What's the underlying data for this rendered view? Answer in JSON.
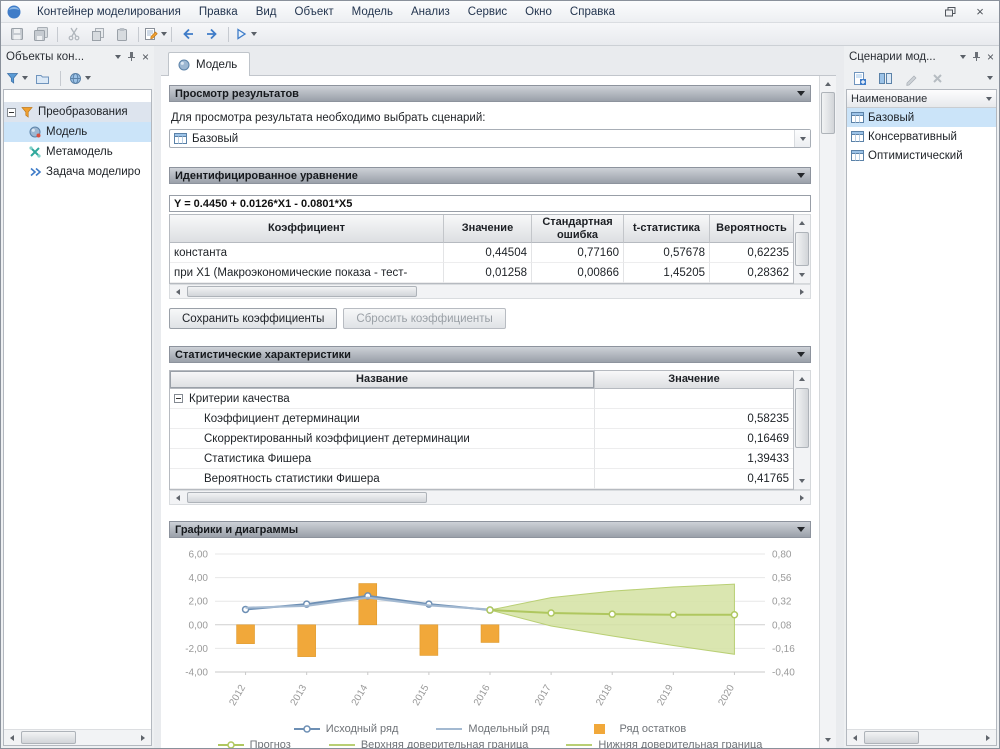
{
  "colors": {
    "accent": "#3f7cc8",
    "selection": "#cbe4f9",
    "section_bar": "#9aa0a9"
  },
  "window": {
    "app_menu": "Контейнер моделирования",
    "menus": [
      "Правка",
      "Вид",
      "Объект",
      "Модель",
      "Анализ",
      "Сервис",
      "Окно",
      "Справка"
    ]
  },
  "left_panel": {
    "title": "Объекты кон...",
    "root": "Преобразования",
    "items": [
      "Модель",
      "Метамодель",
      "Задача моделиро"
    ]
  },
  "tab": {
    "label": "Модель"
  },
  "results": {
    "title": "Просмотр результатов",
    "hint": "Для просмотра результата необходимо выбрать сценарий:",
    "scenario": "Базовый"
  },
  "equation": {
    "title": "Идентифицированное уравнение",
    "formula": "Y = 0.4450 + 0.0126*X1 - 0.0801*X5",
    "headers": [
      "Коэффициент",
      "Значение",
      "Стандартная ошибка",
      "t-статистика",
      "Вероятность"
    ],
    "rows": [
      {
        "name": "константа",
        "value": "0,44504",
        "stderr": "0,77160",
        "tstat": "0,57678",
        "prob": "0,62235"
      },
      {
        "name": "при X1 (Макроэкономические показа - тест-",
        "value": "0,01258",
        "stderr": "0,00866",
        "tstat": "1,45205",
        "prob": "0,28362"
      }
    ],
    "save_button": "Сохранить коэффициенты",
    "reset_button": "Сбросить коэффициенты"
  },
  "stats": {
    "title": "Статистические характеристики",
    "headers": [
      "Название",
      "Значение"
    ],
    "group": "Критерии качества",
    "rows": [
      {
        "name": "Коэффициент детерминации",
        "value": "0,58235"
      },
      {
        "name": "Скорректированный коэффициент детерминации",
        "value": "0,16469"
      },
      {
        "name": "Статистика Фишера",
        "value": "1,39433"
      },
      {
        "name": "Вероятность статистики Фишера",
        "value": "0,41765"
      }
    ]
  },
  "charts_section": {
    "title": "Графики и диаграммы"
  },
  "chart_data": {
    "type": "combo",
    "x": [
      2012,
      2013,
      2014,
      2015,
      2016,
      2017,
      2018,
      2019,
      2020
    ],
    "left_axis": {
      "min": -4,
      "max": 6,
      "ticks": [
        6,
        4,
        2,
        0,
        -2,
        -4
      ]
    },
    "right_axis": {
      "ticks": [
        0.8,
        0.56,
        0.32,
        0.08,
        -0.16,
        -0.4
      ]
    },
    "band_fill": "#d3e2a2",
    "series": [
      {
        "name": "Исходный ряд",
        "type": "line",
        "marker": "circle",
        "color": "#6d8fb4",
        "x": [
          2012,
          2013,
          2014,
          2015,
          2016
        ],
        "values": [
          1.3,
          1.75,
          2.45,
          1.75,
          1.25
        ]
      },
      {
        "name": "Модельный ряд",
        "type": "line",
        "marker": "none",
        "color": "#a3b9d1",
        "x": [
          2012,
          2013,
          2014,
          2015,
          2016
        ],
        "values": [
          1.45,
          1.6,
          2.3,
          1.65,
          1.3
        ]
      },
      {
        "name": "Ряд остатков",
        "type": "bar",
        "color": "#f1a83a",
        "x": [
          2012,
          2013,
          2014,
          2015,
          2016
        ],
        "values": [
          -1.6,
          -2.7,
          3.5,
          -2.6,
          -1.5
        ]
      },
      {
        "name": "Прогноз",
        "type": "line",
        "marker": "circle",
        "color": "#afc75f",
        "x": [
          2016,
          2017,
          2018,
          2019,
          2020
        ],
        "values": [
          1.25,
          1.0,
          0.9,
          0.85,
          0.85
        ]
      },
      {
        "name": "Верхняя доверительная граница",
        "type": "band-upper",
        "color": "#b9cf74",
        "x": [
          2016,
          2017,
          2018,
          2019,
          2020
        ],
        "values": [
          1.25,
          2.3,
          2.85,
          3.2,
          3.45
        ]
      },
      {
        "name": "Нижняя доверительная граница",
        "type": "band-lower",
        "color": "#b9cf74",
        "x": [
          2016,
          2017,
          2018,
          2019,
          2020
        ],
        "values": [
          1.25,
          -0.1,
          -0.95,
          -1.75,
          -2.5
        ]
      }
    ],
    "legend_position": "bottom"
  },
  "right_panel": {
    "title": "Сценарии мод...",
    "column": "Наименование",
    "items": [
      "Базовый",
      "Консервативный",
      "Оптимистический"
    ]
  }
}
